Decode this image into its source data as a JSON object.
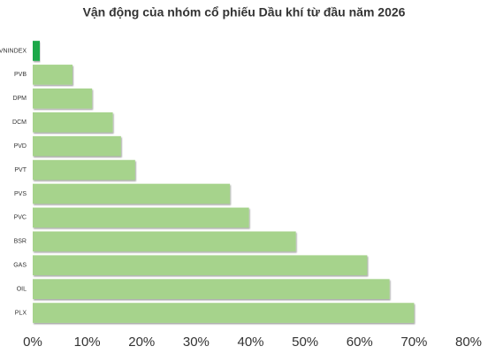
{
  "chart_data": {
    "type": "bar",
    "orientation": "horizontal",
    "title": "Vận động của nhóm cổ phiếu Dầu khí từ đầu năm 2026",
    "categories": [
      "VNINDEX",
      "PVB",
      "DPM",
      "DCM",
      "PVD",
      "PVT",
      "PVS",
      "PVC",
      "BSR",
      "GAS",
      "OIL",
      "PLX"
    ],
    "values": [
      1.3,
      7.3,
      10.9,
      14.7,
      16.2,
      18.8,
      36.2,
      39.7,
      48.3,
      61.4,
      65.5,
      70.0
    ],
    "colors": [
      "#1fa84a",
      "#a6d38c",
      "#a6d38c",
      "#a6d38c",
      "#a6d38c",
      "#a6d38c",
      "#a6d38c",
      "#a6d38c",
      "#a6d38c",
      "#a6d38c",
      "#a6d38c",
      "#a6d38c"
    ],
    "xlim": [
      0,
      80
    ],
    "xticks": [
      {
        "value": 0,
        "label": "0%"
      },
      {
        "value": 10,
        "label": "10%"
      },
      {
        "value": 20,
        "label": "20%"
      },
      {
        "value": 30,
        "label": "30%"
      },
      {
        "value": 40,
        "label": "40%"
      },
      {
        "value": 50,
        "label": "50%"
      },
      {
        "value": 60,
        "label": "60%"
      },
      {
        "value": 70,
        "label": "70%"
      },
      {
        "value": 80,
        "label": "80%"
      }
    ],
    "grid": false
  }
}
